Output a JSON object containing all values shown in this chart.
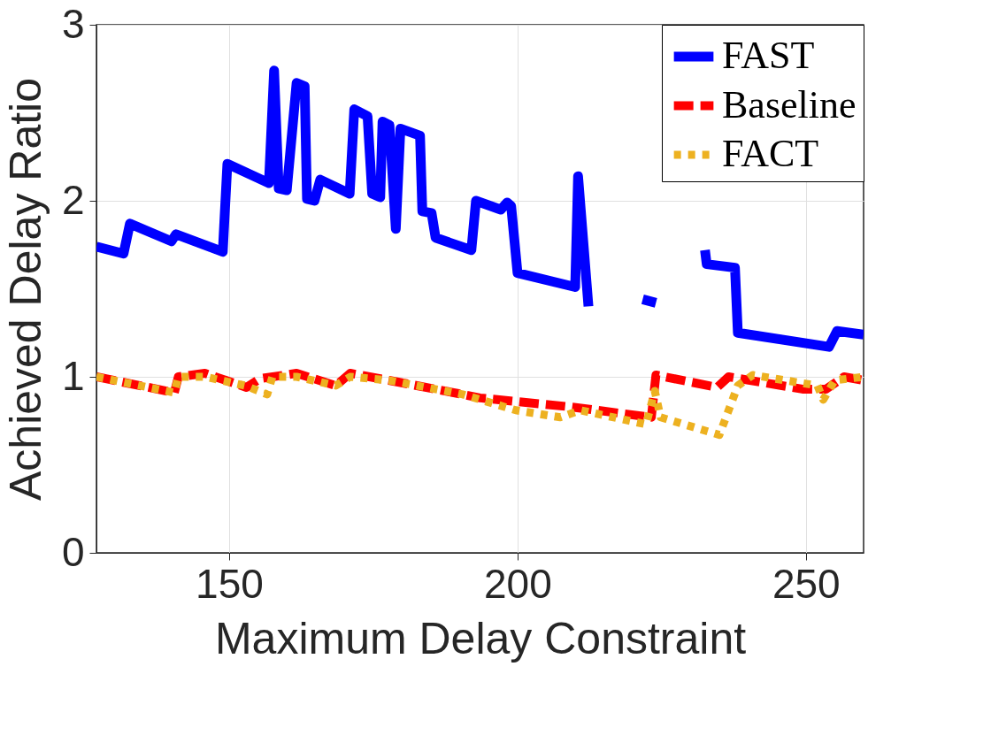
{
  "chart_data": {
    "type": "line",
    "xlabel": "Maximum Delay Constraint",
    "ylabel": "Achieved Delay Ratio",
    "xlim": [
      127,
      260
    ],
    "ylim": [
      0,
      3
    ],
    "xticks": [
      150,
      200,
      250
    ],
    "yticks": [
      0,
      1,
      2,
      3
    ],
    "grid": true,
    "legend": "top right",
    "series": [
      {
        "name": "FAST",
        "color": "#0000ff",
        "line_style": "solid",
        "x": [
          127,
          131.7,
          132.8,
          140,
          140.8,
          148.9,
          149.7,
          156.9,
          157.8,
          158.6,
          160,
          161.7,
          163.1,
          163.5,
          164.8,
          165.8,
          170.9,
          171.7,
          174,
          174.8,
          176.2,
          176.6,
          177.8,
          178.9,
          179.7,
          183.1,
          183.5,
          185.1,
          185.8,
          192,
          192.8,
          197.1,
          198.2,
          198.9,
          200,
          210,
          210.5,
          212.3,
          217,
          221.7,
          224,
          228,
          232.5,
          232.8,
          237.7,
          238.2,
          254,
          255.4,
          260
        ],
        "values": [
          1.74,
          1.7,
          1.87,
          1.77,
          1.81,
          1.71,
          2.21,
          2.1,
          2.74,
          2.07,
          2.06,
          2.67,
          2.65,
          2.01,
          2.0,
          2.12,
          2.04,
          2.52,
          2.48,
          2.04,
          2.02,
          2.45,
          2.43,
          1.84,
          2.41,
          2.37,
          1.94,
          1.93,
          1.79,
          1.72,
          2.0,
          1.95,
          1.99,
          1.97,
          1.59,
          1.51,
          2.14,
          1.4,
          null,
          1.44,
          1.42,
          null,
          1.72,
          1.64,
          1.62,
          1.25,
          1.17,
          1.26,
          1.24
        ]
      },
      {
        "name": "Baseline",
        "color": "#ff0000",
        "line_style": "dashed",
        "x": [
          127,
          140.5,
          141.2,
          145.8,
          153,
          155.4,
          161.7,
          168.5,
          171,
          177.7,
          190.5,
          193.5,
          209,
          223.2,
          224,
          234.6,
          236.6,
          249.4,
          253.5,
          256.6,
          260
        ],
        "values": [
          1.0,
          0.91,
          1.0,
          1.02,
          0.94,
          0.99,
          1.02,
          0.95,
          1.02,
          0.98,
          0.9,
          0.88,
          0.83,
          0.77,
          1.01,
          0.94,
          1.0,
          0.93,
          0.93,
          1.0,
          0.98
        ]
      },
      {
        "name": "FACT",
        "color": "#edb120",
        "line_style": "dotted",
        "x": [
          127,
          140.5,
          141.2,
          145.8,
          152.8,
          156.6,
          157.5,
          161.7,
          168.5,
          171,
          177.7,
          190.5,
          199.7,
          207.4,
          210.9,
          222.3,
          223.8,
          224.8,
          235,
          238.2,
          240.8,
          252,
          253,
          255,
          260
        ],
        "values": [
          1.0,
          0.91,
          1.0,
          1.0,
          0.95,
          0.9,
          1.0,
          1.0,
          0.95,
          1.0,
          0.98,
          0.9,
          0.81,
          0.77,
          0.81,
          0.73,
          0.92,
          0.77,
          0.67,
          0.95,
          1.01,
          0.95,
          0.87,
          0.98,
          1.0
        ]
      }
    ]
  }
}
